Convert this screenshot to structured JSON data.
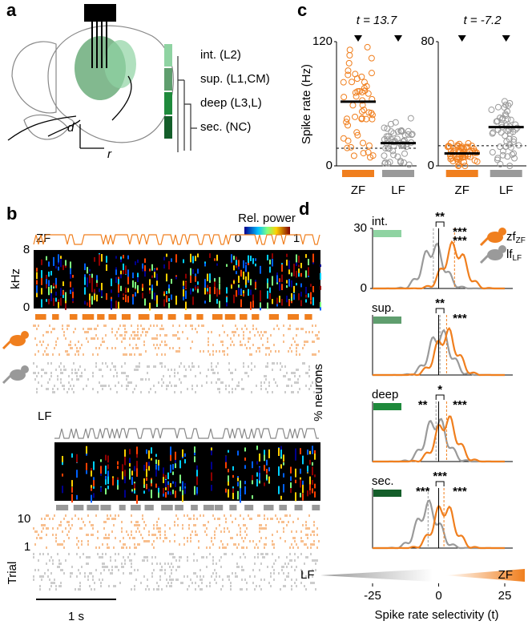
{
  "panel_a": {
    "label": "a",
    "regions": [
      {
        "name": "int. (L2)",
        "color": "#8fd3a2"
      },
      {
        "name": "sup. (L1,CM)",
        "color": "#5f9e6e"
      },
      {
        "name": "deep (L3,L)",
        "color": "#1f8a3c"
      },
      {
        "name": "sec. (NC)",
        "color": "#145e2a"
      }
    ],
    "axis_d": "d",
    "axis_r": "r"
  },
  "panel_b": {
    "label": "b",
    "colorbar_title": "Rel. power",
    "colorbar_ticks": [
      0,
      1
    ],
    "zf_label": "ZF",
    "lf_label": "LF",
    "freq_ticks": [
      8,
      0
    ],
    "freq_label": "kHz",
    "trial_ticks": [
      10,
      1
    ],
    "trial_label": "Trial",
    "scale_bar": "1 s"
  },
  "panel_c": {
    "label": "c",
    "ylabel": "Spike rate (Hz)",
    "plots": [
      {
        "stat": "t = 13.7",
        "ylim": [
          0,
          120
        ],
        "yticks": [
          120,
          0
        ],
        "categories": [
          "ZF",
          "LF"
        ],
        "colors": [
          "#f07f1e",
          "#9a9a9a"
        ],
        "means": [
          62,
          22
        ],
        "baseline": 17
      },
      {
        "stat": "t = -7.2",
        "ylim": [
          0,
          80
        ],
        "yticks": [
          80,
          0
        ],
        "categories": [
          "ZF",
          "LF"
        ],
        "colors": [
          "#f07f1e",
          "#9a9a9a"
        ],
        "means": [
          8,
          25
        ],
        "baseline": 13
      }
    ]
  },
  "panel_d": {
    "label": "d",
    "ylabel": "% neurons",
    "xlabel": "Spike rate selectivity (t)",
    "xlim": [
      -25,
      25
    ],
    "xticks": [
      -25,
      0,
      25
    ],
    "ylim": [
      0,
      30
    ],
    "yticks": [
      30,
      0
    ],
    "ends": [
      "LF",
      "ZF"
    ],
    "legend": [
      {
        "name": "zf",
        "sub": "ZF",
        "color": "#f07f1e"
      },
      {
        "name": "lf",
        "sub": "LF",
        "color": "#9a9a9a"
      }
    ],
    "subplots": [
      {
        "name": "int.",
        "color": "#8fd3a2",
        "stars": [
          {
            "text": "**",
            "color": "#000"
          },
          {
            "text": "***",
            "color": "#f07f1e"
          },
          {
            "text": "***",
            "color": "#9a9a9a"
          }
        ]
      },
      {
        "name": "sup.",
        "color": "#5f9e6e",
        "stars": [
          {
            "text": "**",
            "color": "#000"
          },
          {
            "text": "***",
            "color": "#f07f1e"
          }
        ]
      },
      {
        "name": "deep",
        "color": "#1f8a3c",
        "stars": [
          {
            "text": "*",
            "color": "#000"
          },
          {
            "text": "**",
            "color": "#9a9a9a"
          },
          {
            "text": "***",
            "color": "#f07f1e"
          }
        ]
      },
      {
        "name": "sec.",
        "color": "#145e2a",
        "stars": [
          {
            "text": "***",
            "color": "#000"
          },
          {
            "text": "***",
            "color": "#9a9a9a"
          },
          {
            "text": "***",
            "color": "#f07f1e"
          }
        ]
      }
    ]
  }
}
